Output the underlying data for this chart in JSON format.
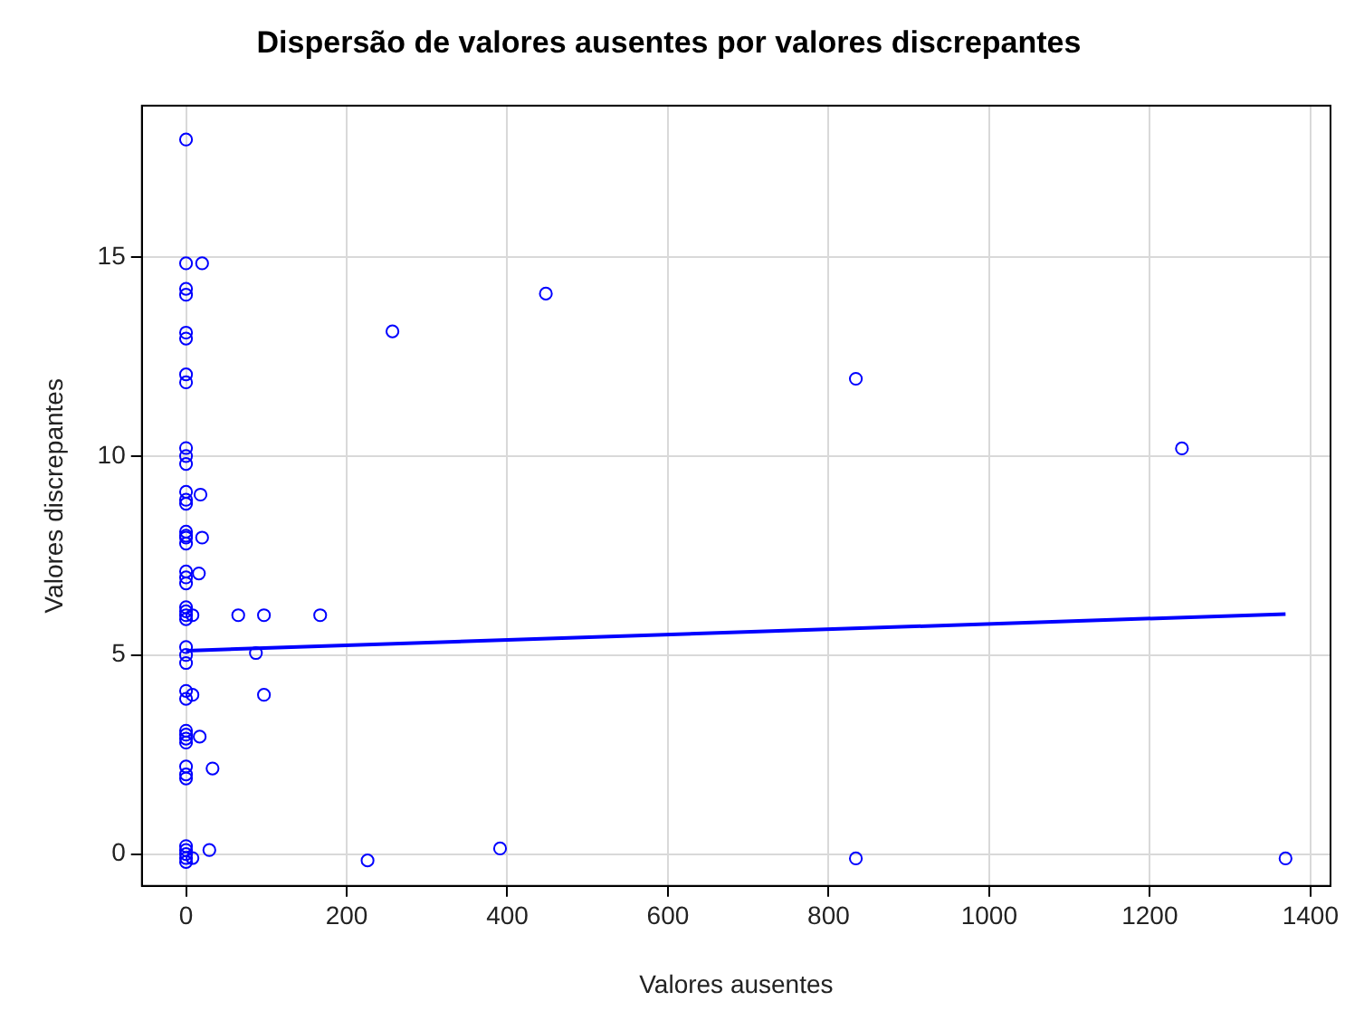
{
  "chart_data": {
    "type": "scatter",
    "title": "Dispersão de valores ausentes por valores discrepantes",
    "xlabel": "Valores ausentes",
    "ylabel": "Valores discrepantes",
    "xlim": [
      -55,
      1425
    ],
    "ylim": [
      -0.8,
      18.8
    ],
    "xticks": [
      0,
      200,
      400,
      600,
      800,
      1000,
      1200,
      1400
    ],
    "yticks": [
      0,
      5,
      10,
      15
    ],
    "grid": true,
    "legend": false,
    "series": [
      {
        "type": "scatter",
        "marker": "circle",
        "color": "#0000ff",
        "x": [
          0,
          0,
          20,
          0,
          0,
          0,
          0,
          0,
          0,
          0,
          0,
          0,
          0,
          0,
          0,
          0,
          18,
          0,
          0,
          0,
          20,
          0,
          0,
          0,
          16,
          0,
          0,
          0,
          0,
          8,
          65,
          97,
          167,
          0,
          0,
          0,
          87,
          0,
          0,
          8,
          97,
          0,
          0,
          0,
          0,
          17,
          0,
          0,
          0,
          33,
          0,
          0,
          0,
          0,
          0,
          8,
          29,
          257,
          448,
          834,
          1240,
          226,
          391,
          834,
          1369
        ],
        "values": [
          17.95,
          14.84,
          14.84,
          14.2,
          14.05,
          13.1,
          12.95,
          12.05,
          11.85,
          10.2,
          10.0,
          9.8,
          9.1,
          8.9,
          8.8,
          8.0,
          9.03,
          8.1,
          7.95,
          7.8,
          7.95,
          7.1,
          6.95,
          6.8,
          7.05,
          6.1,
          6.0,
          5.9,
          6.2,
          6.0,
          6.0,
          6.0,
          6.0,
          5.2,
          5.0,
          4.8,
          5.05,
          4.1,
          3.9,
          4.0,
          4.0,
          3.1,
          3.0,
          2.9,
          2.8,
          2.95,
          2.2,
          2.0,
          1.9,
          2.15,
          0.2,
          0.1,
          0,
          -0.1,
          -0.2,
          -0.1,
          0.1,
          13.13,
          14.08,
          11.94,
          10.19,
          -0.16,
          0.14,
          -0.11,
          -0.11
        ]
      },
      {
        "type": "line",
        "marker": "none",
        "color": "#0000ff",
        "x": [
          0,
          1369
        ],
        "values": [
          5.11,
          6.03
        ]
      }
    ]
  }
}
